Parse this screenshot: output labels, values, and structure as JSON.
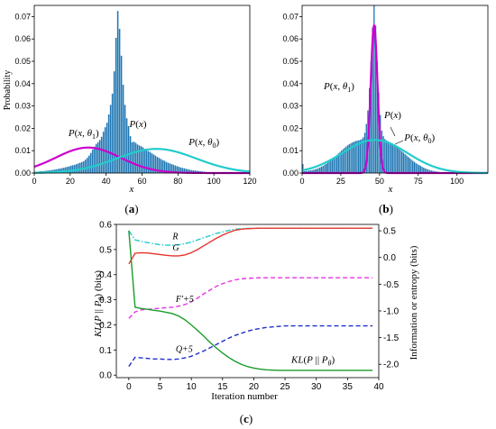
{
  "chart_data": [
    {
      "id": "a",
      "panel_label": "(a)",
      "panel_letter": "a",
      "type": "bar",
      "xlabel": "x",
      "ylabel": "Probability",
      "xlim": [
        0,
        120
      ],
      "ylim": [
        0,
        0.075
      ],
      "xticks": [
        0,
        20,
        40,
        60,
        80,
        100,
        120
      ],
      "yticks": [
        0.0,
        0.01,
        0.02,
        0.03,
        0.04,
        0.05,
        0.06,
        0.07
      ],
      "ytick_labels": [
        "0.00",
        "0.01",
        "0.02",
        "0.03",
        "0.04",
        "0.05",
        "0.06",
        "0.07"
      ],
      "histogram": {
        "name": "P(x)",
        "color": "#1f77b4",
        "x": [
          0,
          1,
          2,
          3,
          4,
          5,
          6,
          7,
          8,
          9,
          10,
          11,
          12,
          13,
          14,
          15,
          16,
          17,
          18,
          19,
          20,
          21,
          22,
          23,
          24,
          25,
          26,
          27,
          28,
          29,
          30,
          31,
          32,
          33,
          34,
          35,
          36,
          37,
          38,
          39,
          40,
          41,
          42,
          43,
          44,
          45,
          46,
          47,
          48,
          49,
          50,
          51,
          52,
          53,
          54,
          55,
          56,
          57,
          58,
          59,
          60,
          61,
          62,
          63,
          64,
          65,
          66,
          67,
          68,
          69,
          70,
          71,
          72,
          73,
          74,
          75,
          76,
          77,
          78,
          79,
          80,
          81,
          82,
          83,
          84,
          85,
          86,
          87,
          88,
          89,
          90,
          91,
          92,
          93,
          94,
          95,
          96,
          97,
          98,
          99,
          100,
          101,
          102,
          103,
          104,
          105,
          106,
          107,
          108,
          109,
          110,
          111,
          112,
          113,
          114,
          115,
          116,
          117,
          118,
          119
        ],
        "values": [
          0.0005,
          0.0006,
          0.0007,
          0.0008,
          0.0008,
          0.0009,
          0.001,
          0.0011,
          0.0012,
          0.0013,
          0.0014,
          0.0016,
          0.0017,
          0.0019,
          0.002,
          0.0022,
          0.0024,
          0.0026,
          0.0028,
          0.003,
          0.0033,
          0.0035,
          0.0037,
          0.004,
          0.0043,
          0.0046,
          0.0049,
          0.0053,
          0.006,
          0.0068,
          0.0078,
          0.009,
          0.0105,
          0.0118,
          0.013,
          0.0138,
          0.0148,
          0.0162,
          0.0185,
          0.0205,
          0.0225,
          0.0262,
          0.0305,
          0.0355,
          0.0455,
          0.0605,
          0.0725,
          0.0645,
          0.0525,
          0.0395,
          0.0305,
          0.0245,
          0.021,
          0.0165,
          0.0138,
          0.014,
          0.0135,
          0.0128,
          0.0123,
          0.012,
          0.0115,
          0.0108,
          0.0103,
          0.0098,
          0.0095,
          0.0088,
          0.0083,
          0.0078,
          0.0072,
          0.0068,
          0.0063,
          0.0058,
          0.0055,
          0.005,
          0.0046,
          0.0043,
          0.004,
          0.0037,
          0.0034,
          0.0031,
          0.0028,
          0.0025,
          0.0023,
          0.0021,
          0.0019,
          0.0017,
          0.0015,
          0.0013,
          0.0012,
          0.0011,
          0.001,
          0.0009,
          0.0008,
          0.0007,
          0.0006,
          0.0005,
          0.0004,
          0.0004,
          0.0003,
          0.0003,
          0.0003,
          0.0002,
          0.0002,
          0.0002,
          0.0001,
          0.0001,
          0.0001,
          0.0001,
          0.0001,
          0.0001,
          0.0001,
          0,
          0,
          0,
          0,
          0,
          0,
          0,
          0,
          0
        ]
      },
      "curves": [
        {
          "name_prefix": "P",
          "name_vars": "(x, θ",
          "name_sub": "1",
          "name_suffix": ")",
          "color": "#cc00cc",
          "mean": 30,
          "sd": 18,
          "scale": 0.0114
        },
        {
          "name_prefix": "P",
          "name_vars": "(x, θ",
          "name_sub": "0",
          "name_suffix": ")",
          "color": "#22cccc",
          "mean": 68,
          "sd": 22,
          "scale": 0.0108
        }
      ],
      "annotations": [
        {
          "prefix": "P",
          "rest": "(x)",
          "x": 53,
          "y": 0.0205
        },
        {
          "prefix": "P",
          "rest": "(x, θ",
          "sub": "1",
          "tail": ")",
          "x": 19,
          "y": 0.0165
        },
        {
          "prefix": "P",
          "rest": "(x, θ",
          "sub": "0",
          "tail": ")",
          "x": 86,
          "y": 0.0125
        }
      ]
    },
    {
      "id": "b",
      "panel_label": "(b)",
      "panel_letter": "b",
      "type": "bar",
      "xlabel": "x",
      "ylabel": "",
      "xlim": [
        0,
        120
      ],
      "ylim": [
        0,
        0.075
      ],
      "xticks": [
        0,
        25,
        50,
        75,
        100
      ],
      "yticks": [
        0.0,
        0.01,
        0.02,
        0.03,
        0.04,
        0.05,
        0.06,
        0.07
      ],
      "ytick_labels": [
        "0.00",
        "0.01",
        "0.02",
        "0.03",
        "0.04",
        "0.05",
        "0.06",
        "0.07"
      ],
      "histogram": {
        "name": "P(x)",
        "color": "#1f77b4",
        "x": [
          0,
          1,
          2,
          3,
          4,
          5,
          6,
          7,
          8,
          9,
          10,
          11,
          12,
          13,
          14,
          15,
          16,
          17,
          18,
          19,
          20,
          21,
          22,
          23,
          24,
          25,
          26,
          27,
          28,
          29,
          30,
          31,
          32,
          33,
          34,
          35,
          36,
          37,
          38,
          39,
          40,
          41,
          42,
          43,
          44,
          45,
          46,
          47,
          48,
          49,
          50,
          51,
          52,
          53,
          54,
          55,
          56,
          57,
          58,
          59,
          60,
          61,
          62,
          63,
          64,
          65,
          66,
          67,
          68,
          69,
          70,
          71,
          72,
          73,
          74,
          75,
          76,
          77,
          78,
          79,
          80,
          81,
          82,
          83,
          84,
          85,
          86,
          87,
          88,
          89,
          90,
          91,
          92,
          93,
          94,
          95,
          96,
          97,
          98,
          99,
          100,
          101,
          102,
          103,
          104,
          105,
          106,
          107,
          108,
          109,
          110,
          111,
          112,
          113,
          114,
          115,
          116,
          117,
          118,
          119
        ],
        "values": [
          0.004,
          0.0008,
          0.0009,
          0.001,
          0.0011,
          0.0012,
          0.0013,
          0.0015,
          0.0017,
          0.0019,
          0.0022,
          0.0025,
          0.0029,
          0.0032,
          0.0037,
          0.0041,
          0.0046,
          0.0052,
          0.0057,
          0.0063,
          0.0069,
          0.0075,
          0.0081,
          0.0088,
          0.0094,
          0.0101,
          0.0107,
          0.0113,
          0.0119,
          0.0124,
          0.0129,
          0.0133,
          0.0137,
          0.014,
          0.0143,
          0.0145,
          0.0146,
          0.0148,
          0.0152,
          0.016,
          0.018,
          0.022,
          0.028,
          0.038,
          0.05,
          0.065,
          0.075,
          0.066,
          0.05,
          0.036,
          0.026,
          0.019,
          0.0165,
          0.0152,
          0.0146,
          0.0142,
          0.0138,
          0.0134,
          0.013,
          0.0125,
          0.012,
          0.0115,
          0.0109,
          0.0103,
          0.0097,
          0.0091,
          0.0085,
          0.0079,
          0.0073,
          0.0067,
          0.0061,
          0.0055,
          0.005,
          0.0045,
          0.004,
          0.0036,
          0.0032,
          0.0028,
          0.0024,
          0.0021,
          0.0018,
          0.0016,
          0.0013,
          0.0011,
          0.001,
          0.0008,
          0.0007,
          0.0006,
          0.0005,
          0.0004,
          0.0003,
          0.0003,
          0.0002,
          0.0002,
          0.0002,
          0.0001,
          0.0001,
          0.0001,
          0.0001,
          0.0001,
          0.0001,
          0.0001,
          0.0001,
          0.0001,
          0,
          0,
          0,
          0,
          0,
          0,
          0,
          0,
          0,
          0,
          0,
          0,
          0,
          0,
          0,
          0.0004
        ]
      },
      "curves": [
        {
          "name_prefix": "P",
          "name_vars": "(x, θ",
          "name_sub": "1",
          "name_suffix": ")",
          "color": "#cc00cc",
          "mean": 46.5,
          "sd": 2.2,
          "scale": 0.066
        },
        {
          "name_prefix": "P",
          "name_vars": "(x, θ",
          "name_sub": "0",
          "name_suffix": ")",
          "color": "#22cccc",
          "mean": 47,
          "sd": 21,
          "scale": 0.0148
        }
      ],
      "annotations": [
        {
          "prefix": "P",
          "rest": "(x, θ",
          "sub": "1",
          "tail": ")",
          "x": 14,
          "y": 0.0375
        },
        {
          "prefix": "P",
          "rest": "(x)",
          "x": 53,
          "y": 0.0245
        },
        {
          "prefix": "P",
          "rest": "(x, θ",
          "sub": "0",
          "tail": ")",
          "x": 66,
          "y": 0.0145
        }
      ]
    },
    {
      "id": "c",
      "panel_label": "(c)",
      "panel_letter": "c",
      "type": "line",
      "xlabel": "Iteration number",
      "ylabel_left": "KL(P || Pθ) (bits)",
      "ylabel_right": "Information or entropy (bits)",
      "xlim": [
        -2,
        40
      ],
      "ylim_left": [
        -0.01,
        0.6
      ],
      "ylim_right": [
        -2.25,
        0.62
      ],
      "xticks": [
        0,
        5,
        10,
        15,
        20,
        25,
        30,
        35,
        40
      ],
      "yticks_left": [
        0.0,
        0.1,
        0.2,
        0.3,
        0.4,
        0.5,
        0.6
      ],
      "ytick_left_labels": [
        "0.0",
        "0.1",
        "0.2",
        "0.3",
        "0.4",
        "0.5",
        "0.6"
      ],
      "yticks_right": [
        -2.0,
        -1.5,
        -1.0,
        -0.5,
        0.0,
        0.5
      ],
      "ytick_right_labels": [
        "-2.0",
        "-1.5",
        "-1.0",
        "-0.5",
        "0.0",
        "0.5"
      ],
      "x": [
        0,
        1,
        2,
        3,
        4,
        5,
        6,
        7,
        8,
        9,
        10,
        11,
        12,
        13,
        14,
        15,
        16,
        17,
        18,
        19,
        20,
        21,
        22,
        23,
        24,
        25,
        26,
        27,
        28,
        29,
        30,
        31,
        32,
        33,
        34,
        35,
        36,
        37,
        38,
        39
      ],
      "series": [
        {
          "name": "R",
          "axis": "right",
          "color": "#22cccc",
          "style": "dashdot",
          "values": [
            0.5,
            0.33,
            0.3,
            0.28,
            0.26,
            0.24,
            0.23,
            0.23,
            0.24,
            0.26,
            0.29,
            0.33,
            0.37,
            0.41,
            0.45,
            0.48,
            0.51,
            0.53,
            0.54,
            0.545,
            0.55,
            0.55,
            0.55,
            0.55,
            0.55,
            0.55,
            0.55,
            0.55,
            0.55,
            0.55,
            0.55,
            0.55,
            0.55,
            0.55,
            0.55,
            0.55,
            0.55,
            0.55,
            0.55,
            0.55
          ]
        },
        {
          "name": "G",
          "axis": "right",
          "color": "#e8332a",
          "style": "solid",
          "values": [
            -0.12,
            0.08,
            0.09,
            0.085,
            0.07,
            0.055,
            0.04,
            0.03,
            0.03,
            0.05,
            0.09,
            0.15,
            0.22,
            0.29,
            0.36,
            0.42,
            0.47,
            0.51,
            0.53,
            0.54,
            0.545,
            0.55,
            0.55,
            0.55,
            0.55,
            0.55,
            0.55,
            0.55,
            0.55,
            0.55,
            0.55,
            0.55,
            0.55,
            0.55,
            0.55,
            0.55,
            0.55,
            0.55,
            0.55,
            0.55
          ]
        },
        {
          "name": "F'+5",
          "axis": "right",
          "color": "#e533e5",
          "style": "dashed",
          "values": [
            -1.14,
            -1.02,
            -0.98,
            -0.97,
            -0.96,
            -0.95,
            -0.94,
            -0.93,
            -0.91,
            -0.88,
            -0.83,
            -0.76,
            -0.68,
            -0.61,
            -0.54,
            -0.49,
            -0.45,
            -0.42,
            -0.4,
            -0.39,
            -0.385,
            -0.38,
            -0.38,
            -0.38,
            -0.38,
            -0.38,
            -0.38,
            -0.38,
            -0.38,
            -0.38,
            -0.38,
            -0.38,
            -0.38,
            -0.38,
            -0.38,
            -0.38,
            -0.38,
            -0.38,
            -0.38,
            -0.38
          ]
        },
        {
          "name": "Q+5",
          "axis": "right",
          "color": "#1f2fcc",
          "style": "dashed",
          "values": [
            -2.04,
            -1.87,
            -1.88,
            -1.89,
            -1.9,
            -1.9,
            -1.91,
            -1.91,
            -1.9,
            -1.88,
            -1.85,
            -1.8,
            -1.75,
            -1.69,
            -1.63,
            -1.57,
            -1.51,
            -1.46,
            -1.42,
            -1.38,
            -1.35,
            -1.33,
            -1.31,
            -1.3,
            -1.29,
            -1.28,
            -1.28,
            -1.28,
            -1.28,
            -1.28,
            -1.28,
            -1.28,
            -1.28,
            -1.28,
            -1.28,
            -1.28,
            -1.28,
            -1.28,
            -1.28,
            -1.28
          ]
        },
        {
          "name": "KL(P || Pθ)",
          "axis": "left",
          "color": "#1a9b2a",
          "style": "solid",
          "values": [
            0.575,
            0.27,
            0.265,
            0.262,
            0.258,
            0.255,
            0.25,
            0.245,
            0.235,
            0.22,
            0.2,
            0.178,
            0.155,
            0.13,
            0.108,
            0.088,
            0.07,
            0.055,
            0.043,
            0.034,
            0.028,
            0.024,
            0.021,
            0.02,
            0.019,
            0.019,
            0.019,
            0.019,
            0.019,
            0.019,
            0.019,
            0.019,
            0.019,
            0.019,
            0.019,
            0.019,
            0.019,
            0.019,
            0.019,
            0.019
          ]
        }
      ],
      "labels": [
        {
          "text": "R",
          "x": 7,
          "yr": 0.34
        },
        {
          "text": "G",
          "x": 7,
          "yr": 0.13
        },
        {
          "text": "F'+5",
          "x": 7.5,
          "yr": -0.83
        },
        {
          "text": "Q+5",
          "x": 7.5,
          "yr": -1.77
        },
        {
          "text": "KL(P || Pθ)",
          "x": 26,
          "yl": 0.05
        }
      ]
    }
  ]
}
